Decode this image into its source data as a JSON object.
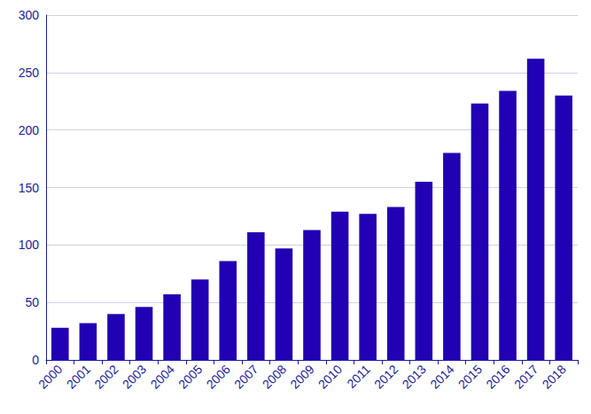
{
  "chart_data": {
    "type": "bar",
    "categories": [
      "2000",
      "2001",
      "2002",
      "2003",
      "2004",
      "2005",
      "2006",
      "2007",
      "2008",
      "2009",
      "2010",
      "2011",
      "2012",
      "2013",
      "2014",
      "2015",
      "2016",
      "2017",
      "2018"
    ],
    "values": [
      28,
      32,
      40,
      46,
      57,
      70,
      86,
      111,
      97,
      113,
      129,
      127,
      133,
      155,
      180,
      223,
      234,
      262,
      230
    ],
    "color": "#2200b4",
    "ylim": [
      0,
      300
    ],
    "yticks": [
      0,
      50,
      100,
      150,
      200,
      250,
      300
    ],
    "grid": true
  }
}
